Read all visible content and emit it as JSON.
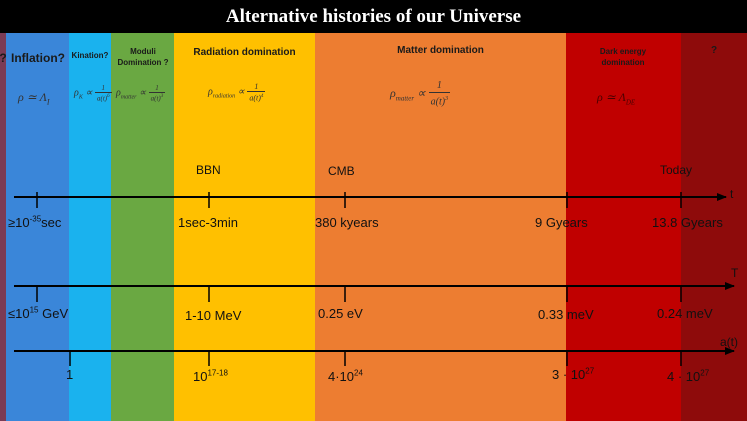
{
  "title": "Alternative histories of our Universe",
  "colors": {
    "inflation": "#3a86d9",
    "kination": "#1ab2ee",
    "moduli": "#6aa842",
    "radiation": "#ffc000",
    "matter": "#ed7d31",
    "dark_energy": "#c00000",
    "future": "#8e0b0b",
    "left_edge": "#7b3b55"
  },
  "eras": {
    "question_left": "?",
    "inflation": {
      "name": "Inflation?",
      "formula": "ρ ≃ Λ",
      "formula_sub": "I"
    },
    "kination": {
      "name": "Kination?",
      "formula": "ρ",
      "formula_sub": "K",
      "prop": "∝",
      "num": "1",
      "den": "a(t)",
      "den_sup": "6"
    },
    "moduli": {
      "name": "Moduli Domination ?",
      "formula": "ρ",
      "formula_sub": "matter",
      "prop": "∝",
      "num": "1",
      "den": "a(t)",
      "den_sup": "3"
    },
    "radiation": {
      "name": "Radiation domination",
      "formula": "ρ",
      "formula_sub": "radiation",
      "prop": "∝",
      "num": "1",
      "den": "a(t)",
      "den_sup": "4"
    },
    "matter": {
      "name": "Matter domination",
      "formula": "ρ",
      "formula_sub": "matter",
      "prop": "∝",
      "num": "1",
      "den": "a(t)",
      "den_sup": "3"
    },
    "dark_energy": {
      "name": "Dark energy domination",
      "formula": "ρ ≃ Λ",
      "formula_sub": "DE"
    },
    "future": {
      "name": "?"
    }
  },
  "events": {
    "bbn": "BBN",
    "cmb": "CMB",
    "today": "Today"
  },
  "axes": {
    "time": {
      "label": "t",
      "ticks": [
        {
          "base": "≥10",
          "sup": "-35",
          "tail": "sec"
        },
        {
          "base": "1sec-3min",
          "sup": "",
          "tail": ""
        },
        {
          "base": "380 kyears",
          "sup": "",
          "tail": ""
        },
        {
          "base": "9 Gyears",
          "sup": "",
          "tail": ""
        },
        {
          "base": "13.8 Gyears",
          "sup": "",
          "tail": ""
        }
      ]
    },
    "temperature": {
      "label": "T",
      "ticks": [
        {
          "base": "≤10",
          "sup": "15",
          "tail": " GeV"
        },
        {
          "base": "1-10 MeV",
          "sup": "",
          "tail": ""
        },
        {
          "base": "0.25 eV",
          "sup": "",
          "tail": ""
        },
        {
          "base": "0.33 meV",
          "sup": "",
          "tail": ""
        },
        {
          "base": "0.24 meV",
          "sup": "",
          "tail": ""
        }
      ]
    },
    "scale_factor": {
      "label": "a(t)",
      "ticks": [
        {
          "base": "1",
          "sup": "",
          "tail": ""
        },
        {
          "base": "10",
          "sup": "17-18",
          "tail": ""
        },
        {
          "base": "4·10",
          "sup": "24",
          "tail": ""
        },
        {
          "base": "3 · 10",
          "sup": "27",
          "tail": ""
        },
        {
          "base": "4 · 10",
          "sup": "27",
          "tail": ""
        }
      ]
    }
  }
}
